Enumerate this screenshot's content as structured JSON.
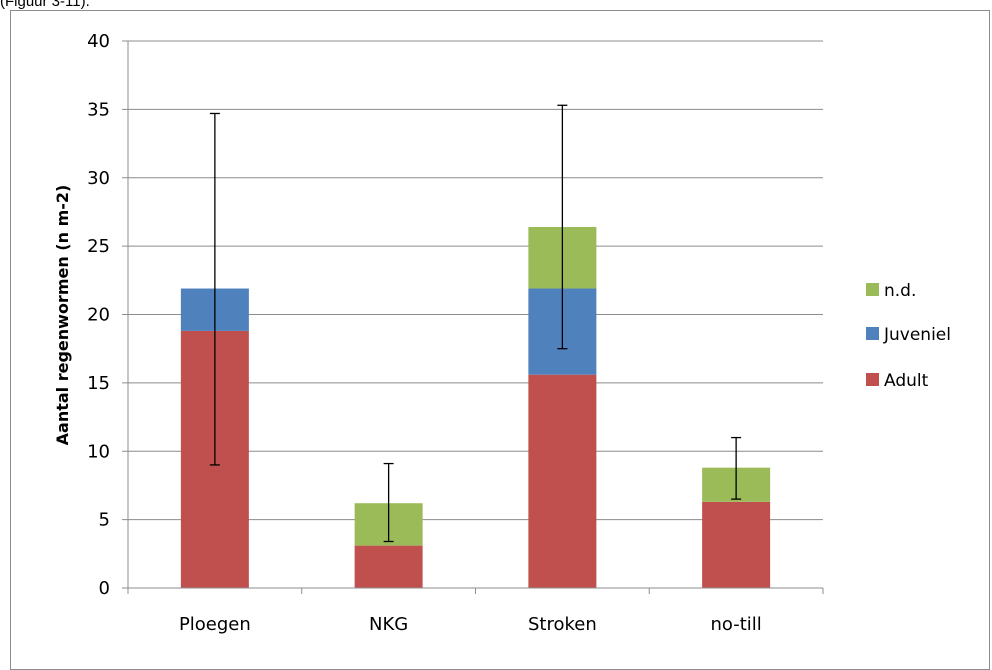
{
  "page": {
    "caption": "(Figuur 3-11)."
  },
  "chart_data": {
    "type": "bar",
    "stacked": true,
    "categories": [
      "Ploegen",
      "NKG",
      "Stroken",
      "no-till"
    ],
    "series": [
      {
        "name": "Adult",
        "values": [
          18.8,
          3.1,
          15.6,
          6.3
        ],
        "color": "#c0504d"
      },
      {
        "name": "Juveniel",
        "values": [
          3.1,
          0,
          6.3,
          0
        ],
        "color": "#4f81bd"
      },
      {
        "name": "n.d.",
        "values": [
          0,
          3.1,
          4.5,
          2.5
        ],
        "color": "#9bbb59"
      }
    ],
    "error_bars": [
      {
        "low": 9.0,
        "high": 34.7
      },
      {
        "low": 3.4,
        "high": 9.1
      },
      {
        "low": 17.5,
        "high": 35.3
      },
      {
        "low": 6.5,
        "high": 11.0
      }
    ],
    "ylabel": "Aantal regenwormen (n m-2)",
    "xlabel": "",
    "title": "",
    "ylim": [
      0,
      40
    ],
    "yticks": [
      0,
      5,
      10,
      15,
      20,
      25,
      30,
      35,
      40
    ],
    "grid": true,
    "legend": {
      "position": "right",
      "order": [
        "n.d.",
        "Juveniel",
        "Adult"
      ]
    }
  }
}
